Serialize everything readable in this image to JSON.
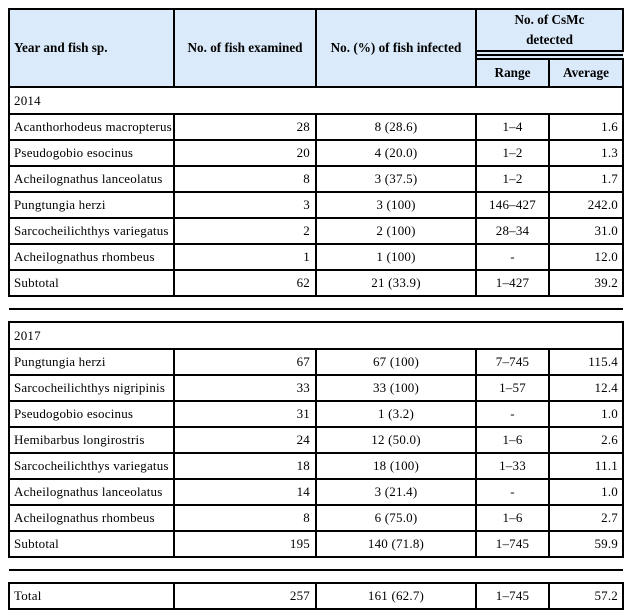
{
  "colors": {
    "header_bg": "#daeafa",
    "border": "#000000"
  },
  "header": {
    "year_fish": "Year and fish sp.",
    "examined": "No. of fish examined",
    "infected": "No. (%) of fish infected",
    "csmc": "No. of CsMc detected",
    "range": "Range",
    "average": "Average"
  },
  "sections": [
    {
      "year": "2014",
      "rows": [
        {
          "name": "Acanthorhodeus macropterus",
          "examined": "28",
          "infected": "8 (28.6)",
          "range": "1–4",
          "average": "1.6"
        },
        {
          "name": "Pseudogobio esocinus",
          "examined": "20",
          "infected": "4 (20.0)",
          "range": "1–2",
          "average": "1.3"
        },
        {
          "name": "Acheilognathus lanceolatus",
          "examined": "8",
          "infected": "3 (37.5)",
          "range": "1–2",
          "average": "1.7"
        },
        {
          "name": "Pungtungia herzi",
          "examined": "3",
          "infected": "3 (100)",
          "range": "146–427",
          "average": "242.0"
        },
        {
          "name": "Sarcocheilichthys variegatus",
          "examined": "2",
          "infected": "2 (100)",
          "range": "28–34",
          "average": "31.0"
        },
        {
          "name": "Acheilognathus rhombeus",
          "examined": "1",
          "infected": "1 (100)",
          "range": "-",
          "average": "12.0"
        },
        {
          "name": "Subtotal",
          "examined": "62",
          "infected": "21 (33.9)",
          "range": "1–427",
          "average": "39.2"
        }
      ]
    },
    {
      "year": "2017",
      "rows": [
        {
          "name": "Pungtungia herzi",
          "examined": "67",
          "infected": "67 (100)",
          "range": "7–745",
          "average": "115.4"
        },
        {
          "name": "Sarcocheilichthys nigripinis",
          "examined": "33",
          "infected": "33 (100)",
          "range": "1–57",
          "average": "12.4"
        },
        {
          "name": "Pseudogobio esocinus",
          "examined": "31",
          "infected": "1 (3.2)",
          "range": "-",
          "average": "1.0"
        },
        {
          "name": "Hemibarbus longirostris",
          "examined": "24",
          "infected": "12 (50.0)",
          "range": "1–6",
          "average": "2.6"
        },
        {
          "name": "Sarcocheilichthys variegatus",
          "examined": "18",
          "infected": "18 (100)",
          "range": "1–33",
          "average": "11.1"
        },
        {
          "name": "Acheilognathus lanceolatus",
          "examined": "14",
          "infected": "3 (21.4)",
          "range": "-",
          "average": "1.0"
        },
        {
          "name": "Acheilognathus rhombeus",
          "examined": "8",
          "infected": "6 (75.0)",
          "range": "1–6",
          "average": "2.7"
        },
        {
          "name": "Subtotal",
          "examined": "195",
          "infected": "140 (71.8)",
          "range": "1–745",
          "average": "59.9"
        }
      ]
    }
  ],
  "total": {
    "name": "Total",
    "examined": "257",
    "infected": "161 (62.7)",
    "range": "1–745",
    "average": "57.2"
  }
}
